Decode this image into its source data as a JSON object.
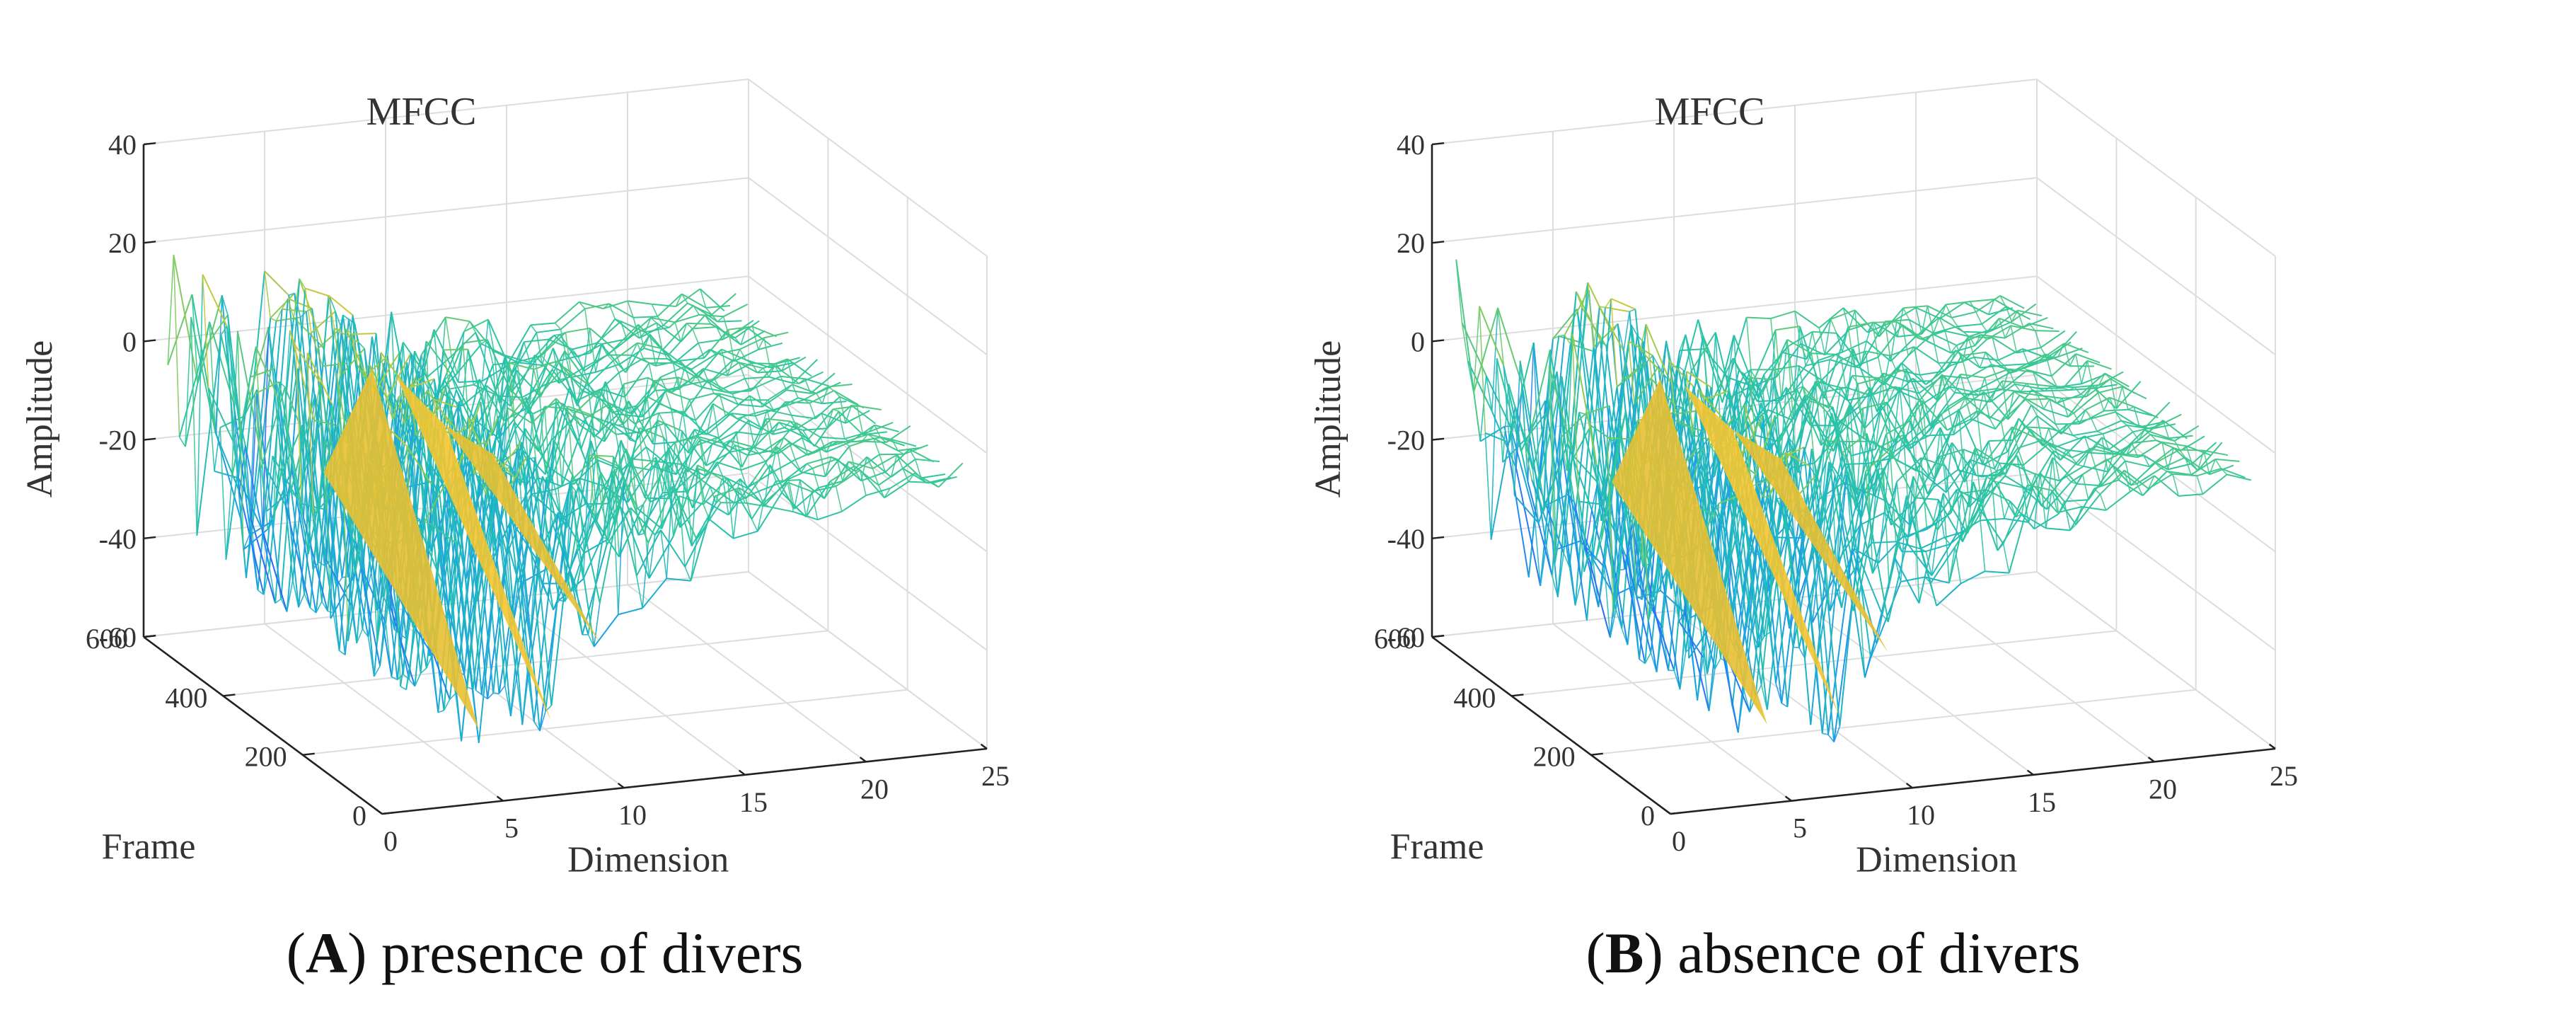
{
  "chart_data": [
    {
      "type": "surface3d",
      "panel_letter": "A",
      "caption": "presence of divers",
      "title": "MFCC",
      "xlabel": "Dimension",
      "ylabel": "Frame",
      "zlabel": "Amplitude",
      "xlim": [
        0,
        25
      ],
      "ylim": [
        0,
        600
      ],
      "zlim": [
        -60,
        40
      ],
      "xticks": [
        0,
        5,
        10,
        15,
        20,
        25
      ],
      "yticks": [
        0,
        200,
        400,
        600
      ],
      "zticks": [
        -60,
        -40,
        -20,
        0,
        20,
        40
      ],
      "dimension_profile": [
        {
          "dimension": 1,
          "mean": -8,
          "min": -45,
          "max": 22
        },
        {
          "dimension": 2,
          "mean": -10,
          "min": -40,
          "max": 15
        },
        {
          "dimension": 3,
          "mean": -12,
          "min": -38,
          "max": 12
        },
        {
          "dimension": 4,
          "mean": -45,
          "min": -50,
          "max": -30
        },
        {
          "dimension": 5,
          "mean": 8,
          "min": -2,
          "max": 18
        },
        {
          "dimension": 6,
          "mean": 6,
          "min": -2,
          "max": 16
        },
        {
          "dimension": 7,
          "mean": -45,
          "min": -50,
          "max": -30
        },
        {
          "dimension": 8,
          "mean": -5,
          "min": -25,
          "max": 2
        },
        {
          "dimension": 9,
          "mean": -30,
          "min": -40,
          "max": -15
        },
        {
          "dimension": 10,
          "mean": -12,
          "min": -28,
          "max": 8
        },
        {
          "dimension": 11,
          "mean": -12,
          "min": -26,
          "max": 6
        },
        {
          "dimension": 12,
          "mean": -11,
          "min": -24,
          "max": 4
        },
        {
          "dimension": 13,
          "mean": -10,
          "min": -22,
          "max": 4
        },
        {
          "dimension": 14,
          "mean": -9,
          "min": -20,
          "max": 2
        },
        {
          "dimension": 15,
          "mean": -8,
          "min": -18,
          "max": 0
        },
        {
          "dimension": 16,
          "mean": -8,
          "min": -16,
          "max": 0
        },
        {
          "dimension": 17,
          "mean": -7,
          "min": -14,
          "max": 0
        },
        {
          "dimension": 18,
          "mean": -6,
          "min": -12,
          "max": 0
        },
        {
          "dimension": 19,
          "mean": -5,
          "min": -10,
          "max": -1
        },
        {
          "dimension": 20,
          "mean": -5,
          "min": -9,
          "max": -1
        },
        {
          "dimension": 21,
          "mean": -5,
          "min": -8,
          "max": -1
        },
        {
          "dimension": 22,
          "mean": -4,
          "min": -8,
          "max": -1
        },
        {
          "dimension": 23,
          "mean": -4,
          "min": -8,
          "max": -1
        },
        {
          "dimension": 24,
          "mean": -4,
          "min": -8,
          "max": -1
        }
      ]
    },
    {
      "type": "surface3d",
      "panel_letter": "B",
      "caption": "absence of divers",
      "title": "MFCC",
      "xlabel": "Dimension",
      "ylabel": "Frame",
      "zlabel": "Amplitude",
      "xlim": [
        0,
        25
      ],
      "ylim": [
        0,
        600
      ],
      "zlim": [
        -60,
        40
      ],
      "xticks": [
        0,
        5,
        10,
        15,
        20,
        25
      ],
      "yticks": [
        0,
        200,
        400,
        600
      ],
      "zticks": [
        -60,
        -40,
        -20,
        0,
        20,
        40
      ],
      "dimension_profile": [
        {
          "dimension": 1,
          "mean": -10,
          "min": -48,
          "max": 20
        },
        {
          "dimension": 2,
          "mean": -12,
          "min": -42,
          "max": 14
        },
        {
          "dimension": 3,
          "mean": -14,
          "min": -40,
          "max": 10
        },
        {
          "dimension": 4,
          "mean": -44,
          "min": -50,
          "max": -30
        },
        {
          "dimension": 5,
          "mean": 6,
          "min": -4,
          "max": 18
        },
        {
          "dimension": 6,
          "mean": 4,
          "min": -4,
          "max": 16
        },
        {
          "dimension": 7,
          "mean": -44,
          "min": -50,
          "max": -30
        },
        {
          "dimension": 8,
          "mean": -6,
          "min": -26,
          "max": 2
        },
        {
          "dimension": 9,
          "mean": -32,
          "min": -42,
          "max": -15
        },
        {
          "dimension": 10,
          "mean": -13,
          "min": -30,
          "max": 6
        },
        {
          "dimension": 11,
          "mean": -13,
          "min": -28,
          "max": 6
        },
        {
          "dimension": 12,
          "mean": -12,
          "min": -26,
          "max": 4
        },
        {
          "dimension": 13,
          "mean": -11,
          "min": -24,
          "max": 2
        },
        {
          "dimension": 14,
          "mean": -10,
          "min": -22,
          "max": 2
        },
        {
          "dimension": 15,
          "mean": -9,
          "min": -20,
          "max": 0
        },
        {
          "dimension": 16,
          "mean": -8,
          "min": -17,
          "max": 0
        },
        {
          "dimension": 17,
          "mean": -7,
          "min": -15,
          "max": 0
        },
        {
          "dimension": 18,
          "mean": -6,
          "min": -12,
          "max": 0
        },
        {
          "dimension": 19,
          "mean": -5,
          "min": -10,
          "max": -1
        },
        {
          "dimension": 20,
          "mean": -5,
          "min": -9,
          "max": -1
        },
        {
          "dimension": 21,
          "mean": -5,
          "min": -8,
          "max": -1
        },
        {
          "dimension": 22,
          "mean": -4,
          "min": -8,
          "max": -1
        },
        {
          "dimension": 23,
          "mean": -4,
          "min": -8,
          "max": -1
        },
        {
          "dimension": 24,
          "mean": -4,
          "min": -8,
          "max": -1
        }
      ]
    }
  ],
  "colors": {
    "axis": "#222222",
    "grid": "#dddddd",
    "colormap": [
      "#3e26a8",
      "#2f63f6",
      "#1c9aeb",
      "#20b9bf",
      "#31c79c",
      "#95cb4e",
      "#f4c531",
      "#f9fb0e"
    ]
  }
}
